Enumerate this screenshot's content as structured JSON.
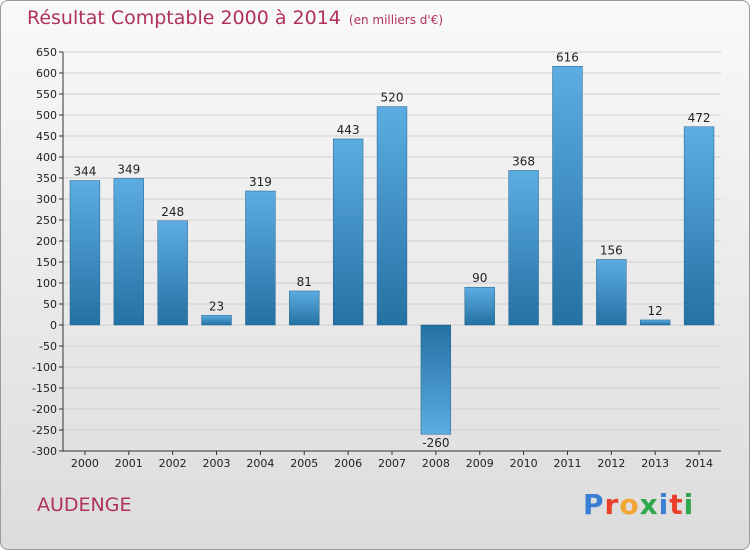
{
  "header": {
    "title": "Résultat Comptable 2000 à 2014",
    "subtitle": "(en milliers d'€)"
  },
  "footer": {
    "commune": "AUDENGE",
    "logo_text": "Proxiti",
    "logo_colors": [
      "#3a7fd5",
      "#e8402a",
      "#f2a531",
      "#2ea84a",
      "#3a7fd5",
      "#e8402a",
      "#2ea84a"
    ]
  },
  "colors": {
    "bar_top": "#5dade2",
    "bar_bottom": "#2471a3",
    "grid": "#d0d0d0",
    "axis": "#333333"
  },
  "chart_data": {
    "type": "bar",
    "categories": [
      "2000",
      "2001",
      "2002",
      "2003",
      "2004",
      "2005",
      "2006",
      "2007",
      "2008",
      "2009",
      "2010",
      "2011",
      "2012",
      "2013",
      "2014"
    ],
    "values": [
      344,
      349,
      248,
      23,
      319,
      81,
      443,
      520,
      -260,
      90,
      368,
      616,
      156,
      12,
      472
    ],
    "ylim": [
      -300,
      650
    ],
    "ytick_step": 50,
    "grid": true,
    "title": "Résultat Comptable 2000 à 2014",
    "xlabel": "",
    "ylabel": ""
  }
}
